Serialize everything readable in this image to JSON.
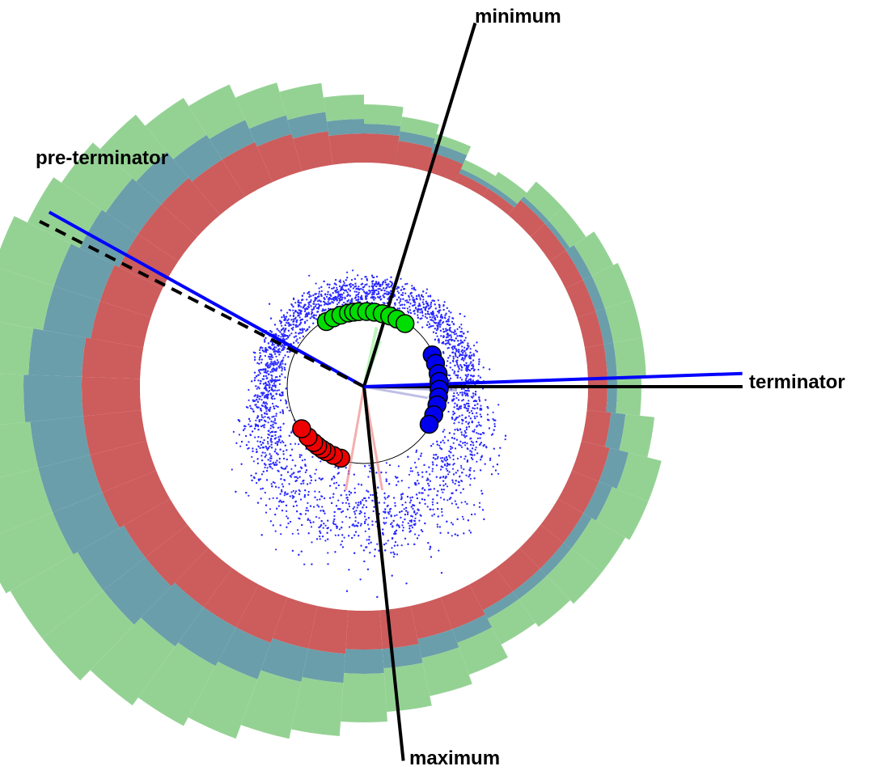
{
  "chart_data": {
    "type": "polar-stacked-histogram",
    "labels": {
      "minimum": "minimum",
      "pre_terminator": "pre-terminator",
      "terminator": "terminator",
      "maximum": "maximum"
    },
    "reference_axes": [
      {
        "name": "minimum",
        "angle_deg": 17,
        "color": "#000000",
        "style": "solid"
      },
      {
        "name": "maximum",
        "angle_deg": 174,
        "color": "#000000",
        "style": "solid"
      },
      {
        "name": "terminator-black",
        "angle_deg": 90,
        "color": "#000000",
        "style": "solid"
      },
      {
        "name": "terminator-blue",
        "angle_deg": 88,
        "color": "#0000ff",
        "style": "solid"
      },
      {
        "name": "pre-terminator-blue",
        "angle_deg": 299,
        "color": "#0000ff",
        "style": "solid"
      },
      {
        "name": "pre-terminator-black",
        "angle_deg": 297,
        "color": "#000000",
        "style": "dashed"
      }
    ],
    "bin_width_deg": 8,
    "series": [
      {
        "name": "red",
        "color": "#cd5c5c",
        "values": [
          10,
          5,
          10,
          10,
          10,
          20,
          20,
          20,
          20,
          20,
          20,
          20,
          25,
          30,
          30,
          30,
          30,
          30,
          30,
          35,
          35,
          40,
          40,
          45,
          45,
          50,
          50,
          50,
          55,
          55,
          60,
          60,
          60,
          60,
          60,
          55,
          55,
          50,
          50,
          50,
          45,
          45,
          40,
          35,
          30,
          30,
          25,
          20
        ]
      },
      {
        "name": "teal",
        "color": "#6a9eaa",
        "values": [
          5,
          5,
          5,
          5,
          5,
          5,
          5,
          10,
          10,
          10,
          10,
          10,
          15,
          20,
          15,
          10,
          10,
          10,
          10,
          15,
          20,
          20,
          25,
          30,
          35,
          40,
          45,
          50,
          55,
          55,
          55,
          55,
          55,
          60,
          55,
          50,
          50,
          45,
          40,
          35,
          30,
          25,
          20,
          20,
          15,
          10,
          10,
          10
        ]
      },
      {
        "name": "green",
        "color": "#94d294",
        "values": [
          5,
          5,
          10,
          10,
          15,
          20,
          20,
          25,
          30,
          30,
          30,
          25,
          30,
          35,
          40,
          40,
          40,
          35,
          30,
          35,
          40,
          45,
          50,
          55,
          60,
          65,
          70,
          75,
          80,
          80,
          80,
          80,
          80,
          75,
          70,
          70,
          65,
          60,
          55,
          50,
          45,
          40,
          35,
          30,
          25,
          20,
          15,
          10
        ]
      }
    ],
    "cluster_points": [
      {
        "group": "green",
        "color": "#00dd00",
        "angles_deg": [
          330,
          336,
          342,
          348,
          352,
          356,
          2,
          8,
          14,
          20,
          26,
          33
        ]
      },
      {
        "group": "blue",
        "color": "#0000ee",
        "angles_deg": [
          65,
          72,
          80,
          86,
          92,
          98,
          104,
          112,
          120
        ]
      },
      {
        "group": "red",
        "color": "#ee0000",
        "angles_deg": [
          198,
          204,
          210,
          214,
          218,
          222,
          228,
          236
        ]
      }
    ]
  }
}
